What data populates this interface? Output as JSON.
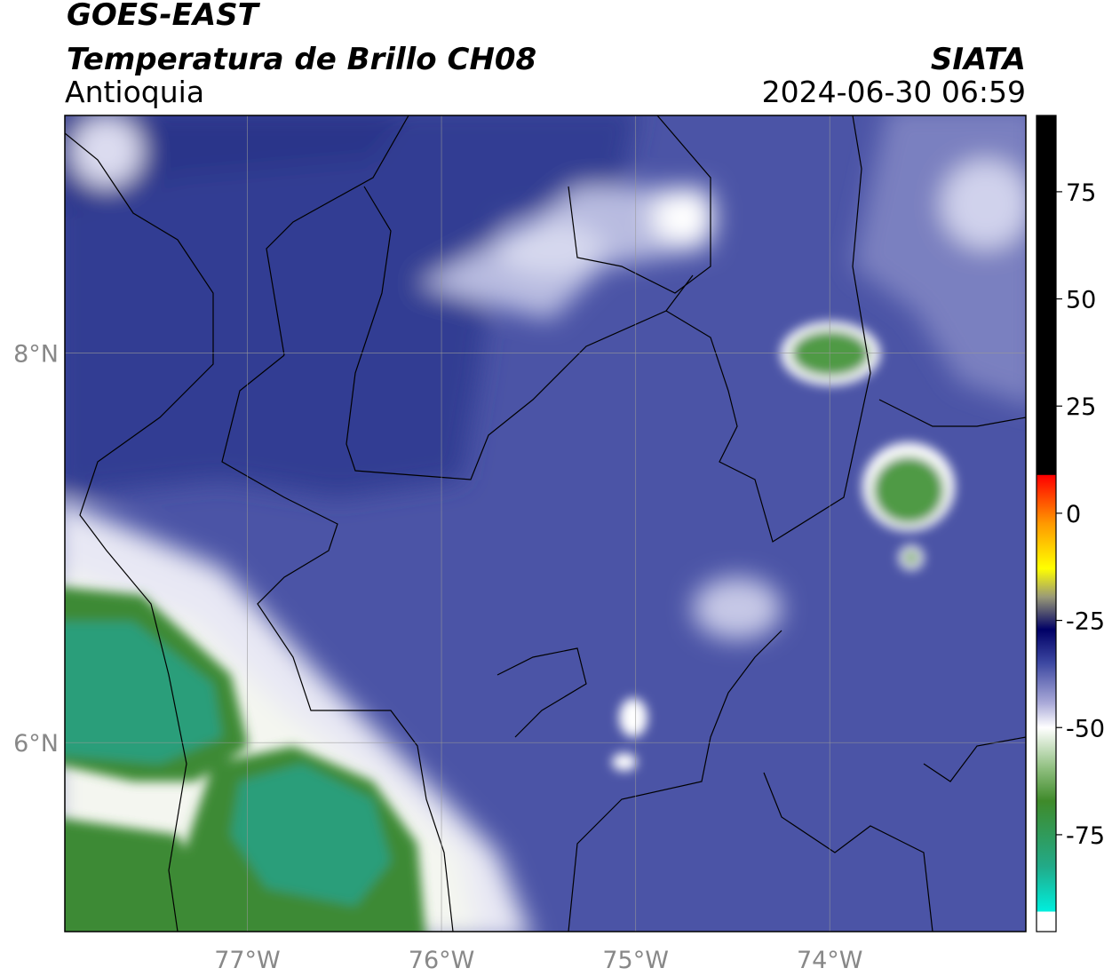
{
  "header": {
    "title": "GOES-EAST",
    "subtitle": "Temperatura de Brillo CH08",
    "region": "Antioquia",
    "source": "SIATA",
    "timestamp": "2024-06-30 06:59"
  },
  "map": {
    "lonlim": [
      -77.94,
      -72.99
    ],
    "latlim": [
      5.03,
      9.22
    ],
    "lon_ticks": [
      {
        "value": -77,
        "label": "77°W"
      },
      {
        "value": -76,
        "label": "76°W"
      },
      {
        "value": -75,
        "label": "75°W"
      },
      {
        "value": -74,
        "label": "74°W"
      }
    ],
    "lat_ticks": [
      {
        "value": 8,
        "label": "8°N"
      },
      {
        "value": 6,
        "label": "6°N"
      }
    ]
  },
  "colorbar": {
    "lim": [
      -97.6,
      92.8
    ],
    "ticks": [
      75,
      50,
      25,
      0,
      -25,
      -50,
      -75
    ]
  }
}
